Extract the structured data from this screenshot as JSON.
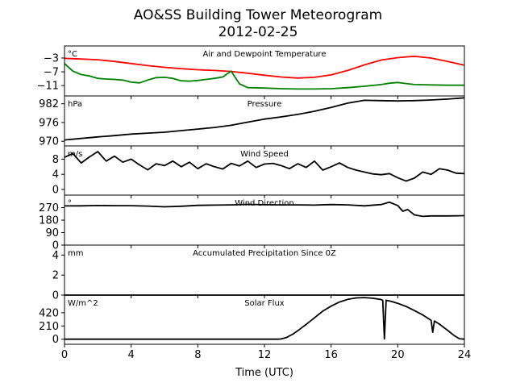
{
  "figure": {
    "title_line1": "AO&SS Building Tower Meteorogram",
    "title_line2": "2012-02-25",
    "xlabel": "Time (UTC)",
    "xticks": [
      0,
      4,
      8,
      12,
      16,
      20,
      24
    ],
    "xlim": [
      0,
      24
    ]
  },
  "chart_data": [
    {
      "type": "line",
      "title": "Air and Dewpoint Temperature",
      "unit": "°C",
      "ylim": [
        -14,
        0.5
      ],
      "yticks": [
        -3,
        -7,
        -11
      ],
      "series": [
        {
          "color": "#ff0000",
          "x": [
            0,
            1,
            2,
            3,
            4,
            5,
            6,
            7,
            8,
            9,
            10,
            11,
            12,
            13,
            14,
            15,
            16,
            17,
            18,
            19,
            20,
            21,
            22,
            23,
            24
          ],
          "y": [
            -3.1,
            -3.3,
            -3.5,
            -4.0,
            -4.6,
            -5.2,
            -5.7,
            -6.1,
            -6.4,
            -6.6,
            -6.9,
            -7.4,
            -8.0,
            -8.5,
            -8.8,
            -8.6,
            -7.9,
            -6.6,
            -5.0,
            -3.6,
            -2.9,
            -2.5,
            -3.0,
            -4.0,
            -5.1
          ]
        },
        {
          "color": "#008000",
          "x": [
            0,
            0.5,
            1,
            1.5,
            2,
            2.5,
            3,
            3.5,
            4,
            4.5,
            5,
            5.5,
            6,
            6.5,
            7,
            7.5,
            8,
            8.5,
            9,
            9.5,
            10,
            10.5,
            11,
            12,
            13,
            14,
            15,
            16,
            17,
            18,
            19,
            19.5,
            20,
            20.5,
            21,
            22,
            23,
            24
          ],
          "y": [
            -4.6,
            -6.8,
            -7.8,
            -8.2,
            -8.9,
            -9.1,
            -9.2,
            -9.4,
            -10.0,
            -10.2,
            -9.4,
            -8.7,
            -8.6,
            -8.9,
            -9.6,
            -9.7,
            -9.5,
            -9.2,
            -8.9,
            -8.5,
            -6.8,
            -10.5,
            -11.6,
            -11.7,
            -11.9,
            -12.0,
            -12.0,
            -11.9,
            -11.6,
            -11.2,
            -10.7,
            -10.3,
            -10.1,
            -10.4,
            -10.7,
            -10.8,
            -10.9,
            -10.9
          ]
        }
      ]
    },
    {
      "type": "line",
      "title": "Pressure",
      "unit": "hPa",
      "ylim": [
        968.5,
        984.5
      ],
      "yticks": [
        982,
        976,
        970
      ],
      "series": [
        {
          "color": "#000000",
          "x": [
            0,
            1,
            2,
            3,
            4,
            5,
            6,
            7,
            8,
            9,
            10,
            11,
            12,
            13,
            14,
            15,
            16,
            17,
            18,
            19,
            20,
            21,
            22,
            23,
            24
          ],
          "y": [
            970.4,
            970.9,
            971.4,
            971.8,
            972.3,
            972.6,
            972.9,
            973.4,
            973.9,
            974.4,
            975.1,
            976.1,
            977.1,
            977.8,
            978.6,
            979.6,
            980.8,
            982.2,
            983.1,
            983.0,
            982.9,
            983.0,
            983.2,
            983.5,
            983.9
          ]
        }
      ]
    },
    {
      "type": "line",
      "title": "Wind Speed",
      "unit": "m/s",
      "ylim": [
        -1.5,
        11.5
      ],
      "yticks": [
        8,
        4,
        0
      ],
      "series": [
        {
          "color": "#000000",
          "x": [
            0,
            0.5,
            1,
            1.5,
            2,
            2.5,
            3,
            3.5,
            4,
            4.5,
            5,
            5.5,
            6,
            6.5,
            7,
            7.5,
            8,
            8.5,
            9,
            9.5,
            10,
            10.5,
            11,
            11.5,
            12,
            12.5,
            13,
            13.5,
            14,
            14.5,
            15,
            15.5,
            16,
            16.5,
            17,
            17.5,
            18,
            18.5,
            19,
            19.5,
            20,
            20.5,
            21,
            21.5,
            22,
            22.5,
            23,
            23.5,
            24
          ],
          "y": [
            8.5,
            9.5,
            7.0,
            8.6,
            10.0,
            7.5,
            8.8,
            7.2,
            8.0,
            6.5,
            5.2,
            6.8,
            6.3,
            7.5,
            6.0,
            7.2,
            5.5,
            6.8,
            6.0,
            5.4,
            6.9,
            6.2,
            7.5,
            5.8,
            6.7,
            6.9,
            6.3,
            5.5,
            6.8,
            5.8,
            7.5,
            5.1,
            6.0,
            7.0,
            5.8,
            5.1,
            4.6,
            4.1,
            3.9,
            4.2,
            3.1,
            2.2,
            3.0,
            4.6,
            4.0,
            5.5,
            5.1,
            4.3,
            4.2
          ]
        }
      ]
    },
    {
      "type": "line",
      "title": "Wind Direction",
      "unit": "°",
      "ylim": [
        0,
        360
      ],
      "yticks": [
        270,
        180,
        90,
        0
      ],
      "series": [
        {
          "color": "#000000",
          "x": [
            0,
            1,
            2,
            3,
            4,
            5,
            6,
            7,
            8,
            9,
            10,
            11,
            12,
            13,
            14,
            15,
            16,
            17,
            18,
            19,
            19.5,
            20,
            20.3,
            20.6,
            21,
            21.5,
            22,
            23,
            24
          ],
          "y": [
            282,
            283,
            285,
            284,
            284,
            281,
            276,
            280,
            286,
            288,
            290,
            293,
            291,
            290,
            290,
            288,
            292,
            290,
            283,
            292,
            309,
            285,
            244,
            256,
            218,
            207,
            210,
            210,
            212
          ]
        }
      ]
    },
    {
      "type": "line",
      "title": "Accumulated Precipitation Since 0Z",
      "unit": "mm",
      "ylim": [
        0,
        5
      ],
      "yticks": [
        4,
        2,
        0
      ],
      "series": [
        {
          "color": "#000000",
          "x": [
            0,
            24
          ],
          "y": [
            0,
            0
          ]
        }
      ]
    },
    {
      "type": "line",
      "title": "Solar Flux",
      "unit": "W/m^2",
      "ylim": [
        -80,
        700
      ],
      "yticks": [
        420,
        210,
        0
      ],
      "series": [
        {
          "color": "#000000",
          "x": [
            0,
            12.8,
            13.0,
            13.3,
            13.7,
            14,
            14.5,
            15,
            15.5,
            16,
            16.5,
            17,
            17.5,
            18,
            18.5,
            19.0,
            19.1,
            19.2,
            19.3,
            19.4,
            19.6,
            20,
            20.5,
            21,
            21.5,
            22.0,
            22.1,
            22.2,
            22.5,
            23,
            23.4,
            23.7,
            24
          ],
          "y": [
            0,
            0,
            5,
            25,
            80,
            135,
            235,
            340,
            445,
            525,
            590,
            632,
            655,
            660,
            650,
            630,
            615,
            5,
            620,
            612,
            600,
            570,
            520,
            455,
            385,
            300,
            110,
            290,
            240,
            140,
            55,
            8,
            0
          ]
        }
      ]
    }
  ]
}
